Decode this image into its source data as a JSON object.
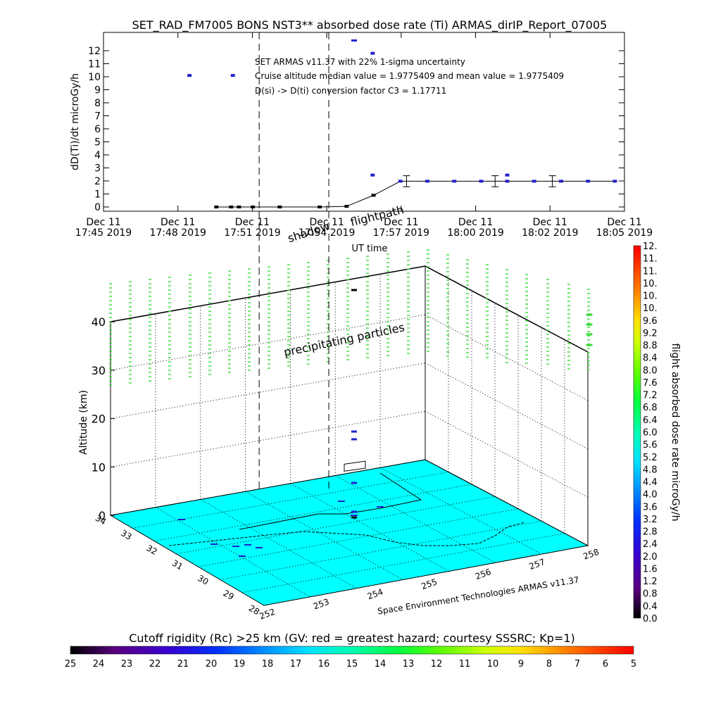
{
  "chart_data": [
    {
      "type": "scatter",
      "title": "SET_RAD_FM7005  BONS NST3** absorbed dose rate (Ti) ARMAS_dirIP_Report_07005",
      "xlabel": "UT time",
      "ylabel": "dD(Ti)/dt microGy/h",
      "ylim": [
        0,
        12
      ],
      "x_tick_labels": [
        {
          "date": "Dec 11",
          "time": "17:45 2019"
        },
        {
          "date": "Dec 11",
          "time": "17:48 2019"
        },
        {
          "date": "Dec 11",
          "time": "17:51 2019"
        },
        {
          "date": "Dec 11",
          "time": "17:54 2019"
        },
        {
          "date": "Dec 11",
          "time": "17:57 2019"
        },
        {
          "date": "Dec 11",
          "time": "18:00 2019"
        },
        {
          "date": "Dec 11",
          "time": "18:02 2019"
        },
        {
          "date": "Dec 11",
          "time": "18:05 2019"
        }
      ],
      "y_ticks": [
        0,
        1,
        2,
        3,
        4,
        5,
        6,
        7,
        8,
        9,
        10,
        11,
        12
      ],
      "annotations": [
        "SET ARMAS v11.37 with 22% 1-sigma uncertainty",
        "Cruise altitude median value = 1.9775409 and mean value = 1.9775409",
        "D(si)  -> D(ti) conversion factor C3 = 1.17711"
      ],
      "region_labels": [
        "shadow",
        "flightpath"
      ],
      "vertical_lines_min": [
        17.93,
        25.95
      ],
      "series": [
        {
          "style": "line-with-points",
          "x_min": [
            13.0,
            14.7,
            15.6,
            17.2,
            20.3,
            24.9,
            28.0,
            31.1,
            34.2,
            37.3,
            40.4,
            43.5,
            46.5,
            49.6,
            52.7,
            55.8,
            58.9
          ],
          "y": [
            0,
            0,
            0,
            0,
            0,
            0,
            0.05,
            0.9,
            1.98,
            1.98,
            1.98,
            1.98,
            1.98,
            1.98,
            1.98,
            1.98,
            1.98
          ]
        },
        {
          "style": "points",
          "x_min": [
            9.9,
            14.9,
            31.0,
            31.0,
            46.5
          ],
          "y": [
            10.1,
            10.1,
            11.8,
            2.45,
            2.45
          ]
        }
      ],
      "error_bars": [
        {
          "x_min": 34.9,
          "y": 1.98,
          "low": 1.55,
          "high": 2.4
        },
        {
          "x_min": 45.1,
          "y": 1.98,
          "low": 1.55,
          "high": 2.4
        },
        {
          "x_min": 51.7,
          "y": 1.98,
          "low": 1.55,
          "high": 2.4
        }
      ]
    },
    {
      "type": "scatter",
      "title": "precipitating particles",
      "zlabel": "Altitude (km)",
      "z_ticks": [
        0,
        10,
        20,
        30,
        40
      ],
      "latitude_ticks": [
        "34",
        "33",
        "32",
        "31",
        "30",
        "29",
        "28"
      ],
      "longitude_ticks": [
        "252",
        "253",
        "254",
        "255",
        "256",
        "257",
        "258"
      ],
      "credit": "Space Environment Technologies ARMAS v11.37",
      "region_labels": [
        "shadow",
        "flightpath"
      ]
    },
    {
      "type": "heatmap",
      "colorbar": "vertical",
      "label": "flight absorbed dose rate microGy/h",
      "tick_labels": [
        "0.0",
        "0.4",
        "0.8",
        "1.2",
        "1.6",
        "2.0",
        "2.4",
        "2.8",
        "3.2",
        "3.6",
        "4.0",
        "4.4",
        "4.8",
        "5.2",
        "5.6",
        "6.0",
        "6.4",
        "6.8",
        "7.2",
        "7.6",
        "8.0",
        "8.4",
        "8.8",
        "9.2",
        "9.6",
        "10.",
        "10.",
        "10.",
        "11.",
        "11.",
        "12."
      ],
      "range": [
        0,
        12
      ]
    },
    {
      "type": "heatmap",
      "colorbar": "horizontal",
      "label": "Cutoff rigidity (Rc) >25 km (GV: red = greatest hazard; courtesy SSSRC; Kp=1)",
      "tick_labels": [
        "25",
        "24",
        "23",
        "22",
        "21",
        "20",
        "19",
        "18",
        "17",
        "16",
        "15",
        "14",
        "13",
        "12",
        "11",
        "10",
        "9",
        "8",
        "7",
        "6",
        "5"
      ],
      "range": [
        25,
        5
      ],
      "surface_value": 17.4
    }
  ],
  "colors": {
    "surface": "#00ffff",
    "track": "#000000",
    "markers": "#2222cc",
    "columns": "#44dd44",
    "frame": "#000000"
  }
}
